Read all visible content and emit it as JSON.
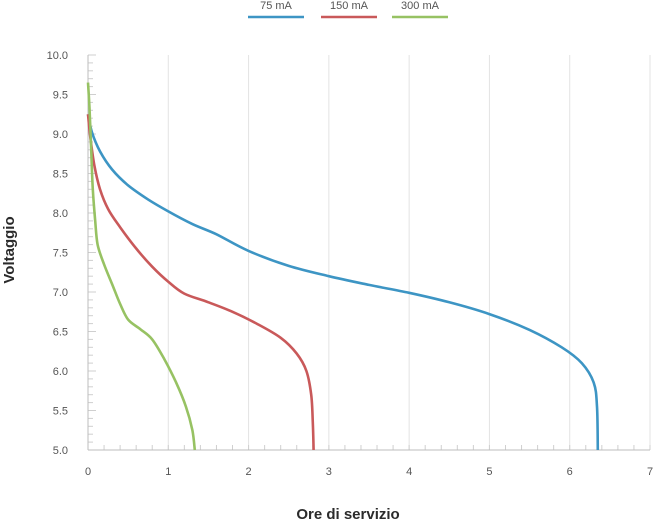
{
  "chart_data": {
    "type": "line",
    "title": "",
    "xlabel": "Ore di servizio",
    "ylabel": "Voltaggio",
    "xlim": [
      0,
      7
    ],
    "ylim": [
      5.0,
      10.0
    ],
    "x_ticks": [
      "0",
      "1",
      "2",
      "3",
      "4",
      "5",
      "6",
      "7"
    ],
    "y_ticks": [
      "5.0",
      "5.5",
      "6.0",
      "6.5",
      "7.0",
      "7.5",
      "8.0",
      "8.5",
      "9.0",
      "9.5",
      "10.0"
    ],
    "grid": "vertical",
    "legend_position": "top-center",
    "series": [
      {
        "name": "75 mA",
        "color": "#3d95c4",
        "points": [
          [
            0.0,
            9.25
          ],
          [
            0.05,
            9.02
          ],
          [
            0.15,
            8.78
          ],
          [
            0.3,
            8.55
          ],
          [
            0.5,
            8.35
          ],
          [
            0.75,
            8.17
          ],
          [
            1.0,
            8.02
          ],
          [
            1.3,
            7.86
          ],
          [
            1.6,
            7.73
          ],
          [
            2.0,
            7.52
          ],
          [
            2.5,
            7.33
          ],
          [
            3.0,
            7.2
          ],
          [
            3.5,
            7.09
          ],
          [
            4.0,
            6.99
          ],
          [
            4.5,
            6.87
          ],
          [
            5.0,
            6.72
          ],
          [
            5.5,
            6.52
          ],
          [
            5.9,
            6.3
          ],
          [
            6.15,
            6.1
          ],
          [
            6.3,
            5.85
          ],
          [
            6.34,
            5.55
          ],
          [
            6.35,
            5.0
          ]
        ]
      },
      {
        "name": "150 mA",
        "color": "#c9595a",
        "points": [
          [
            0.0,
            9.25
          ],
          [
            0.03,
            8.95
          ],
          [
            0.08,
            8.6
          ],
          [
            0.15,
            8.3
          ],
          [
            0.25,
            8.05
          ],
          [
            0.4,
            7.82
          ],
          [
            0.6,
            7.55
          ],
          [
            0.8,
            7.32
          ],
          [
            1.0,
            7.13
          ],
          [
            1.2,
            6.98
          ],
          [
            1.5,
            6.87
          ],
          [
            1.8,
            6.75
          ],
          [
            2.1,
            6.6
          ],
          [
            2.4,
            6.42
          ],
          [
            2.6,
            6.22
          ],
          [
            2.72,
            6.0
          ],
          [
            2.78,
            5.7
          ],
          [
            2.8,
            5.35
          ],
          [
            2.81,
            5.0
          ]
        ]
      },
      {
        "name": "300 mA",
        "color": "#97c263",
        "points": [
          [
            0.0,
            9.65
          ],
          [
            0.02,
            9.3
          ],
          [
            0.04,
            8.8
          ],
          [
            0.06,
            8.3
          ],
          [
            0.09,
            7.9
          ],
          [
            0.12,
            7.6
          ],
          [
            0.2,
            7.35
          ],
          [
            0.3,
            7.1
          ],
          [
            0.4,
            6.85
          ],
          [
            0.5,
            6.65
          ],
          [
            0.65,
            6.53
          ],
          [
            0.8,
            6.4
          ],
          [
            0.95,
            6.15
          ],
          [
            1.1,
            5.85
          ],
          [
            1.22,
            5.55
          ],
          [
            1.3,
            5.25
          ],
          [
            1.33,
            5.0
          ]
        ]
      }
    ]
  }
}
